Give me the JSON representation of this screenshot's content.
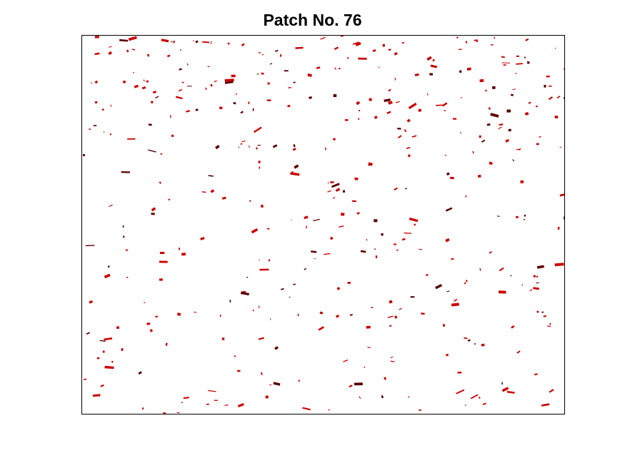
{
  "figure": {
    "title": "Patch No. 76"
  },
  "colors": {
    "background": "#ffffff",
    "frame": "#000000",
    "mark_primary": "#cc0000",
    "mark_dark": "#5a0000"
  }
}
